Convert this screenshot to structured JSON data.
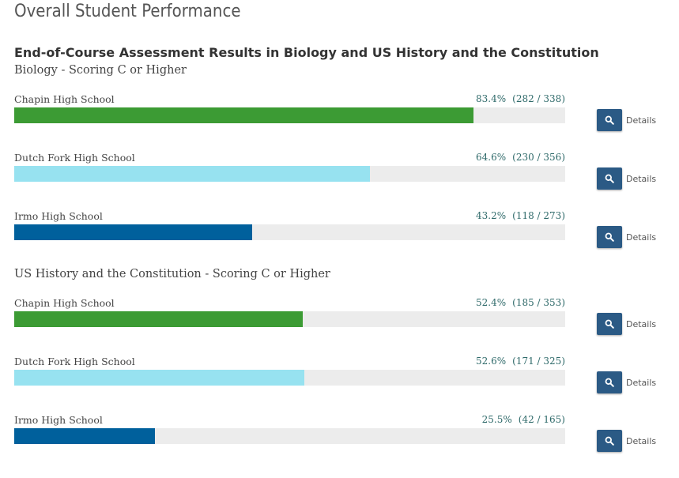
{
  "page": {
    "title": "Overall Student Performance"
  },
  "section": {
    "title": "End-of-Course Assessment Results in Biology and US History and the Constitution"
  },
  "colors": {
    "chapin": "#3c9b34",
    "dutch_fork": "#97e2f0",
    "irmo": "#00609c",
    "track": "#ececec",
    "button": "#2b5a85"
  },
  "subjects": [
    {
      "title": "Biology - Scoring C or Higher",
      "rows": [
        {
          "school": "Chapin High School",
          "percent_label": "83.4%",
          "counts": "(282 / 338)",
          "value": 83.4,
          "color_key": "chapin",
          "details_label": "Details"
        },
        {
          "school": "Dutch Fork High School",
          "percent_label": "64.6%",
          "counts": "(230 / 356)",
          "value": 64.6,
          "color_key": "dutch_fork",
          "details_label": "Details"
        },
        {
          "school": "Irmo High School",
          "percent_label": "43.2%",
          "counts": "(118 / 273)",
          "value": 43.2,
          "color_key": "irmo",
          "details_label": "Details"
        }
      ]
    },
    {
      "title": "US History and the Constitution - Scoring C or Higher",
      "rows": [
        {
          "school": "Chapin High School",
          "percent_label": "52.4%",
          "counts": "(185 / 353)",
          "value": 52.4,
          "color_key": "chapin",
          "details_label": "Details"
        },
        {
          "school": "Dutch Fork High School",
          "percent_label": "52.6%",
          "counts": "(171 / 325)",
          "value": 52.6,
          "color_key": "dutch_fork",
          "details_label": "Details"
        },
        {
          "school": "Irmo High School",
          "percent_label": "25.5%",
          "counts": "(42 / 165)",
          "value": 25.5,
          "color_key": "irmo",
          "details_label": "Details"
        }
      ]
    }
  ]
}
